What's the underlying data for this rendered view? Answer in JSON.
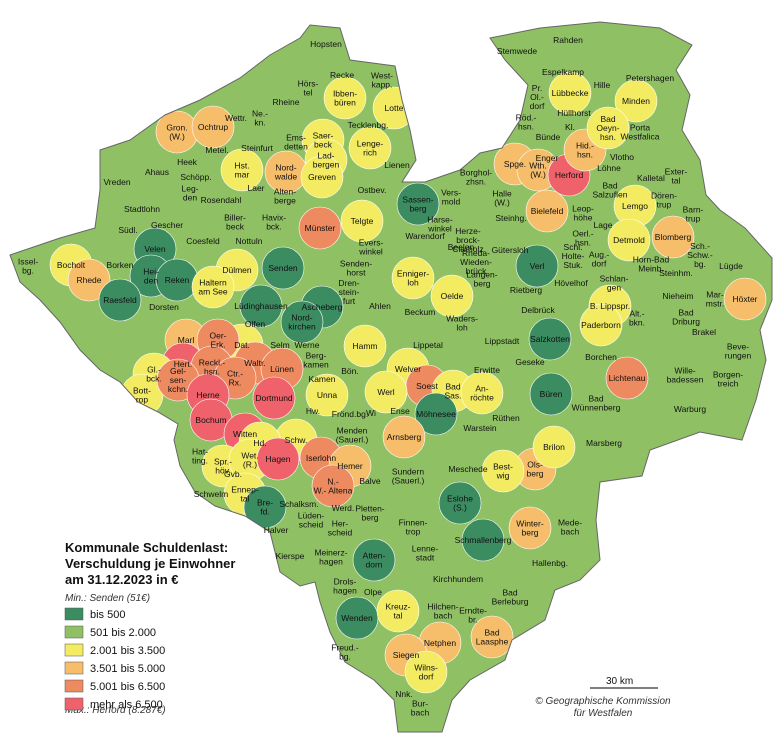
{
  "title": "Kommunale Schuldenlast:\nVerschuldung je Einwohner\nam 31.12.2023 in €",
  "min_note": "Min.: Senden (51€)",
  "max_note": "Max.: Herford (8.287€)",
  "legend": [
    {
      "label": "bis 500",
      "color": "#3c8c62"
    },
    {
      "label": "501 bis 2.000",
      "color": "#8fc164"
    },
    {
      "label": "2.001 bis 3.500",
      "color": "#f3eb62"
    },
    {
      "label": "3.501 bis 5.000",
      "color": "#f6bd6a"
    },
    {
      "label": "5.001 bis 6.500",
      "color": "#ee8a60"
    },
    {
      "label": "mehr als 6.500",
      "color": "#f0626b"
    }
  ],
  "scale_label": "30 km",
  "credit": "© Geographische Kommission\nfür Westfalen",
  "municipalities": [
    {
      "name": "Hopsten",
      "color": "#8fc164"
    },
    {
      "name": "Recke",
      "color": "#8fc164"
    },
    {
      "name": "West-\nkapp.",
      "color": "#8fc164"
    },
    {
      "name": "Hörs-\ntel",
      "color": "#8fc164"
    },
    {
      "name": "Ibben-\nbüren",
      "color": "#f3eb62"
    },
    {
      "name": "Rheine",
      "color": "#8fc164"
    },
    {
      "name": "Lotte",
      "color": "#f3eb62"
    },
    {
      "name": "Wettr.",
      "color": "#8fc164"
    },
    {
      "name": "Ne.-\nkn.",
      "color": "#8fc164"
    },
    {
      "name": "Tecklenbg.",
      "color": "#8fc164"
    },
    {
      "name": "Gron.\n(W.)",
      "color": "#f6bd6a"
    },
    {
      "name": "Ochtrup",
      "color": "#f6bd6a"
    },
    {
      "name": "Ems-\ndetten",
      "color": "#8fc164"
    },
    {
      "name": "Saer-\nbeck",
      "color": "#f3eb62"
    },
    {
      "name": "Lenge-\nrich",
      "color": "#f3eb62"
    },
    {
      "name": "Metel.",
      "color": "#8fc164"
    },
    {
      "name": "Steinfurt",
      "color": "#8fc164"
    },
    {
      "name": "Lad-\nbergen",
      "color": "#f3eb62"
    },
    {
      "name": "Heek",
      "color": "#8fc164"
    },
    {
      "name": "Hst.\nmar",
      "color": "#f3eb62"
    },
    {
      "name": "Nord-\nwalde",
      "color": "#f6bd6a"
    },
    {
      "name": "Lienen",
      "color": "#8fc164"
    },
    {
      "name": "Ahaus",
      "color": "#8fc164"
    },
    {
      "name": "Schöpp.",
      "color": "#8fc164"
    },
    {
      "name": "Greven",
      "color": "#f3eb62"
    },
    {
      "name": "Vreden",
      "color": "#8fc164"
    },
    {
      "name": "Leg-\nden",
      "color": "#8fc164"
    },
    {
      "name": "Laer",
      "color": "#8fc164"
    },
    {
      "name": "Alten-\nberge",
      "color": "#8fc164"
    },
    {
      "name": "Ostbev.",
      "color": "#8fc164"
    },
    {
      "name": "Rosendahl",
      "color": "#8fc164"
    },
    {
      "name": "Stadtlohn",
      "color": "#8fc164"
    },
    {
      "name": "Biller-\nbeck",
      "color": "#8fc164"
    },
    {
      "name": "Havix-\nbck.",
      "color": "#8fc164"
    },
    {
      "name": "Münster",
      "color": "#ee8a60"
    },
    {
      "name": "Telgte",
      "color": "#f3eb62"
    },
    {
      "name": "Sassen-\nberg",
      "color": "#3c8c62"
    },
    {
      "name": "Vers-\nmold",
      "color": "#8fc164"
    },
    {
      "name": "Gescher",
      "color": "#8fc164"
    },
    {
      "name": "Südl.",
      "color": "#8fc164"
    },
    {
      "name": "Coesfeld",
      "color": "#8fc164"
    },
    {
      "name": "Nottuln",
      "color": "#8fc164"
    },
    {
      "name": "Evers-\nwinkel",
      "color": "#8fc164"
    },
    {
      "name": "Warendorf",
      "color": "#8fc164"
    },
    {
      "name": "Beelen",
      "color": "#8fc164"
    },
    {
      "name": "Velen",
      "color": "#3c8c62"
    },
    {
      "name": "Issel-\nbg.",
      "color": "#8fc164"
    },
    {
      "name": "Bocholt",
      "color": "#f3eb62"
    },
    {
      "name": "Rhede",
      "color": "#f6bd6a"
    },
    {
      "name": "Borken",
      "color": "#8fc164"
    },
    {
      "name": "Hei-\nden",
      "color": "#3c8c62"
    },
    {
      "name": "Reken",
      "color": "#3c8c62"
    },
    {
      "name": "Dülmen",
      "color": "#f3eb62"
    },
    {
      "name": "Senden",
      "color": "#3c8c62"
    },
    {
      "name": "Senden-\nhorst",
      "color": "#8fc164"
    },
    {
      "name": "Enniger-\nloh",
      "color": "#f3eb62"
    },
    {
      "name": "Dren-\nstein-\nfurt",
      "color": "#8fc164"
    },
    {
      "name": "Raesfeld",
      "color": "#3c8c62"
    },
    {
      "name": "Dorsten",
      "color": "#8fc164"
    },
    {
      "name": "Haltern\nam See",
      "color": "#f3eb62"
    },
    {
      "name": "Lüdinghausen",
      "color": "#3c8c62"
    },
    {
      "name": "Ascheberg",
      "color": "#3c8c62"
    },
    {
      "name": "Nord-\nkirchen",
      "color": "#3c8c62"
    },
    {
      "name": "Ahlen",
      "color": "#8fc164"
    },
    {
      "name": "Oelde",
      "color": "#f3eb62"
    },
    {
      "name": "Beckum",
      "color": "#8fc164"
    },
    {
      "name": "Olfen",
      "color": "#8fc164"
    },
    {
      "name": "Werne",
      "color": "#8fc164"
    },
    {
      "name": "Marl",
      "color": "#f6bd6a"
    },
    {
      "name": "Dat.",
      "color": "#f3eb62"
    },
    {
      "name": "Waders-\nloh",
      "color": "#8fc164"
    },
    {
      "name": "Oer-\nErk.",
      "color": "#ee8a60"
    },
    {
      "name": "Selm",
      "color": "#8fc164"
    },
    {
      "name": "Lippetal",
      "color": "#8fc164"
    },
    {
      "name": "Hert.",
      "color": "#f0626b"
    },
    {
      "name": "Gl.-\nbck.",
      "color": "#f3eb62"
    },
    {
      "name": "Reckl.-\nhsn.",
      "color": "#ee8a60"
    },
    {
      "name": "Waltr.",
      "color": "#ee8a60"
    },
    {
      "name": "Berg-\nkamen",
      "color": "#8fc164"
    },
    {
      "name": "Hamm",
      "color": "#f3eb62"
    },
    {
      "name": "Bott-\nrop",
      "color": "#f3eb62"
    },
    {
      "name": "Gel-\nsen-\nkchn.",
      "color": "#ee8a60"
    },
    {
      "name": "Ctr.-\nRx.",
      "color": "#ee8a60"
    },
    {
      "name": "Lünen",
      "color": "#ee8a60"
    },
    {
      "name": "Kamen",
      "color": "#8fc164"
    },
    {
      "name": "Bön.",
      "color": "#8fc164"
    },
    {
      "name": "Welver",
      "color": "#f3eb62"
    },
    {
      "name": "Soest",
      "color": "#ee8a60"
    },
    {
      "name": "Bad\nSas.",
      "color": "#f3eb62"
    },
    {
      "name": "Herne",
      "color": "#f0626b"
    },
    {
      "name": "Dortmund",
      "color": "#f0626b"
    },
    {
      "name": "Unna",
      "color": "#f3eb62"
    },
    {
      "name": "Werl",
      "color": "#f3eb62"
    },
    {
      "name": "An-\nröchte",
      "color": "#f3eb62"
    },
    {
      "name": "Hw.",
      "color": "#8fc164"
    },
    {
      "name": "Frönd.bg.",
      "color": "#8fc164"
    },
    {
      "name": "Wi",
      "color": "#8fc164"
    },
    {
      "name": "Ense",
      "color": "#8fc164"
    },
    {
      "name": "Möhnesee",
      "color": "#3c8c62"
    },
    {
      "name": "Bochum",
      "color": "#f0626b"
    },
    {
      "name": "Schw.",
      "color": "#f3eb62"
    },
    {
      "name": "Menden\n(Sauerl.)",
      "color": "#8fc164"
    },
    {
      "name": "Arnsberg",
      "color": "#f6bd6a"
    },
    {
      "name": "Warstein",
      "color": "#8fc164"
    },
    {
      "name": "Witten",
      "color": "#f0626b"
    },
    {
      "name": "Hd.",
      "color": "#f3eb62"
    },
    {
      "name": "Hat-\nting.",
      "color": "#8fc164"
    },
    {
      "name": "Spr.-\nhöv.",
      "color": "#f3eb62"
    },
    {
      "name": "Wet.\n(R.)",
      "color": "#f3eb62"
    },
    {
      "name": "Gvb.",
      "color": "#8fc164"
    },
    {
      "name": "Hagen",
      "color": "#f0626b"
    },
    {
      "name": "Iserlohn",
      "color": "#ee8a60"
    },
    {
      "name": "Hemer",
      "color": "#f6bd6a"
    },
    {
      "name": "Ennep-\ntal",
      "color": "#f3eb62"
    },
    {
      "name": "Schwelm",
      "color": "#8fc164"
    },
    {
      "name": "Bre-\nfd.",
      "color": "#3c8c62"
    },
    {
      "name": "N.-\nW.- Altena",
      "color": "#ee8a60"
    },
    {
      "name": "Balve",
      "color": "#8fc164"
    },
    {
      "name": "Sundern\n(Sauerl.)",
      "color": "#8fc164"
    },
    {
      "name": "Meschede",
      "color": "#8fc164"
    },
    {
      "name": "Schalksm.",
      "color": "#8fc164"
    },
    {
      "name": "Lüden-\nscheid",
      "color": "#8fc164"
    },
    {
      "name": "Werd.",
      "color": "#8fc164"
    },
    {
      "name": "Halver",
      "color": "#8fc164"
    },
    {
      "name": "Pletten-\nberg",
      "color": "#8fc164"
    },
    {
      "name": "Her-\nscheid",
      "color": "#8fc164"
    },
    {
      "name": "Kierspe",
      "color": "#8fc164"
    },
    {
      "name": "Meinerz-\nhagen",
      "color": "#8fc164"
    },
    {
      "name": "Finnen-\ntrop",
      "color": "#8fc164"
    },
    {
      "name": "Atten-\ndorn",
      "color": "#3c8c62"
    },
    {
      "name": "Eslohe\n(S.)",
      "color": "#3c8c62"
    },
    {
      "name": "Schmallenberg",
      "color": "#3c8c62"
    },
    {
      "name": "Lenne-\nstadt",
      "color": "#8fc164"
    },
    {
      "name": "Kirchhundem",
      "color": "#8fc164"
    },
    {
      "name": "Drols-\nhagen",
      "color": "#8fc164"
    },
    {
      "name": "Olpe",
      "color": "#8fc164"
    },
    {
      "name": "Wenden",
      "color": "#3c8c62"
    },
    {
      "name": "Kreuz-\ntal",
      "color": "#f3eb62"
    },
    {
      "name": "Hilchen-\nbach",
      "color": "#8fc164"
    },
    {
      "name": "Erndte-\nbr.",
      "color": "#8fc164"
    },
    {
      "name": "Netphen",
      "color": "#f6bd6a"
    },
    {
      "name": "Bad\nLaasphe",
      "color": "#f6bd6a"
    },
    {
      "name": "Freud.-\nbg.",
      "color": "#8fc164"
    },
    {
      "name": "Siegen",
      "color": "#f6bd6a"
    },
    {
      "name": "Wilns-\ndorf",
      "color": "#f3eb62"
    },
    {
      "name": "Nnk.",
      "color": "#8fc164"
    },
    {
      "name": "Bur-\nbach",
      "color": "#8fc164"
    },
    {
      "name": "Bad\nBerleburg",
      "color": "#8fc164"
    },
    {
      "name": "Hallenbg.",
      "color": "#8fc164"
    },
    {
      "name": "Winter-\nberg",
      "color": "#f6bd6a"
    },
    {
      "name": "Mede-\nbach",
      "color": "#8fc164"
    },
    {
      "name": "Ols-\nberg",
      "color": "#f6bd6a"
    },
    {
      "name": "Best-\nwig",
      "color": "#f3eb62"
    },
    {
      "name": "Brilon",
      "color": "#f3eb62"
    },
    {
      "name": "Marsberg",
      "color": "#8fc164"
    },
    {
      "name": "Rüthen",
      "color": "#8fc164"
    },
    {
      "name": "Erwitte",
      "color": "#8fc164"
    },
    {
      "name": "Geseke",
      "color": "#8fc164"
    },
    {
      "name": "Büren",
      "color": "#3c8c62"
    },
    {
      "name": "Bad\nWünnenberg",
      "color": "#8fc164"
    },
    {
      "name": "Salzkotten",
      "color": "#3c8c62"
    },
    {
      "name": "Lippstadt",
      "color": "#8fc164"
    },
    {
      "name": "Rietberg",
      "color": "#8fc164"
    },
    {
      "name": "Delbrück",
      "color": "#8fc164"
    },
    {
      "name": "Verl",
      "color": "#3c8c62"
    },
    {
      "name": "Hövelhof",
      "color": "#8fc164"
    },
    {
      "name": "Schl.\nHolte-\nStuk.",
      "color": "#8fc164"
    },
    {
      "name": "Langen-\nberg",
      "color": "#8fc164"
    },
    {
      "name": "Rheda-\nWieden-\nbrück",
      "color": "#8fc164"
    },
    {
      "name": "Herze-\nbrock-\nClarholz",
      "color": "#8fc164"
    },
    {
      "name": "Gütersloh",
      "color": "#8fc164"
    },
    {
      "name": "Harse-\nwinkel",
      "color": "#8fc164"
    },
    {
      "name": "Halle\n(W.)",
      "color": "#8fc164"
    },
    {
      "name": "Borghol-\nzhsn.",
      "color": "#8fc164"
    },
    {
      "name": "Steinhg.",
      "color": "#8fc164"
    },
    {
      "name": "Bielefeld",
      "color": "#f6bd6a"
    },
    {
      "name": "Spge.",
      "color": "#f6bd6a"
    },
    {
      "name": "Wth.\n(W.)",
      "color": "#f6bd6a"
    },
    {
      "name": "Enger",
      "color": "#8fc164"
    },
    {
      "name": "Herford",
      "color": "#f0626b"
    },
    {
      "name": "Hid.-\nhsn.",
      "color": "#f6bd6a"
    },
    {
      "name": "Löhne",
      "color": "#8fc164"
    },
    {
      "name": "Bad\nSalzuflen",
      "color": "#8fc164"
    },
    {
      "name": "Vlotho",
      "color": "#8fc164"
    },
    {
      "name": "Kalletal",
      "color": "#8fc164"
    },
    {
      "name": "Exter-\ntal",
      "color": "#8fc164"
    },
    {
      "name": "Leop-\nhöhe",
      "color": "#8fc164"
    },
    {
      "name": "Lemgo",
      "color": "#f3eb62"
    },
    {
      "name": "Dören-\ntrup",
      "color": "#8fc164"
    },
    {
      "name": "Barn-\ntrup",
      "color": "#8fc164"
    },
    {
      "name": "Oerl.-\nhsn.",
      "color": "#8fc164"
    },
    {
      "name": "Aug.-\ndorf",
      "color": "#8fc164"
    },
    {
      "name": "Lage",
      "color": "#8fc164"
    },
    {
      "name": "Detmold",
      "color": "#f3eb62"
    },
    {
      "name": "Blomberg",
      "color": "#f6bd6a"
    },
    {
      "name": "Sch.-\nSchw.-\nbg.",
      "color": "#8fc164"
    },
    {
      "name": "Lügde",
      "color": "#8fc164"
    },
    {
      "name": "Schlan-\ngen",
      "color": "#8fc164"
    },
    {
      "name": "Horn-Bad\nMeinb.",
      "color": "#8fc164"
    },
    {
      "name": "Steinhm.",
      "color": "#8fc164"
    },
    {
      "name": "B. Lippspr.",
      "color": "#f3eb62"
    },
    {
      "name": "Nieheim",
      "color": "#8fc164"
    },
    {
      "name": "Mar-\nmstr.",
      "color": "#8fc164"
    },
    {
      "name": "Höxter",
      "color": "#f6bd6a"
    },
    {
      "name": "Paderborn",
      "color": "#f3eb62"
    },
    {
      "name": "Alt.-\nbkn.",
      "color": "#8fc164"
    },
    {
      "name": "Bad\nDriburg",
      "color": "#8fc164"
    },
    {
      "name": "Brakel",
      "color": "#8fc164"
    },
    {
      "name": "Borchen",
      "color": "#8fc164"
    },
    {
      "name": "Lichtenau",
      "color": "#ee8a60"
    },
    {
      "name": "Beve-\nrungen",
      "color": "#8fc164"
    },
    {
      "name": "Wille-\nbadessen",
      "color": "#8fc164"
    },
    {
      "name": "Borgen-\ntreich",
      "color": "#8fc164"
    },
    {
      "name": "Warburg",
      "color": "#8fc164"
    },
    {
      "name": "Stemwede",
      "color": "#8fc164"
    },
    {
      "name": "Rahden",
      "color": "#8fc164"
    },
    {
      "name": "Espelkamp",
      "color": "#8fc164"
    },
    {
      "name": "Petershagen",
      "color": "#8fc164"
    },
    {
      "name": "Pr.\nOl.-\ndorf",
      "color": "#8fc164"
    },
    {
      "name": "Lübbecke",
      "color": "#f3eb62"
    },
    {
      "name": "Hille",
      "color": "#8fc164"
    },
    {
      "name": "Minden",
      "color": "#f3eb62"
    },
    {
      "name": "Hüllhorst",
      "color": "#8fc164"
    },
    {
      "name": "Röd.-\nhsn.",
      "color": "#8fc164"
    },
    {
      "name": "Bad\nOeyn-\nhsn.",
      "color": "#f3eb62"
    },
    {
      "name": "Porta\nWestfalica",
      "color": "#8fc164"
    },
    {
      "name": "Kl.",
      "color": "#8fc164"
    },
    {
      "name": "Bünde",
      "color": "#8fc164"
    }
  ]
}
